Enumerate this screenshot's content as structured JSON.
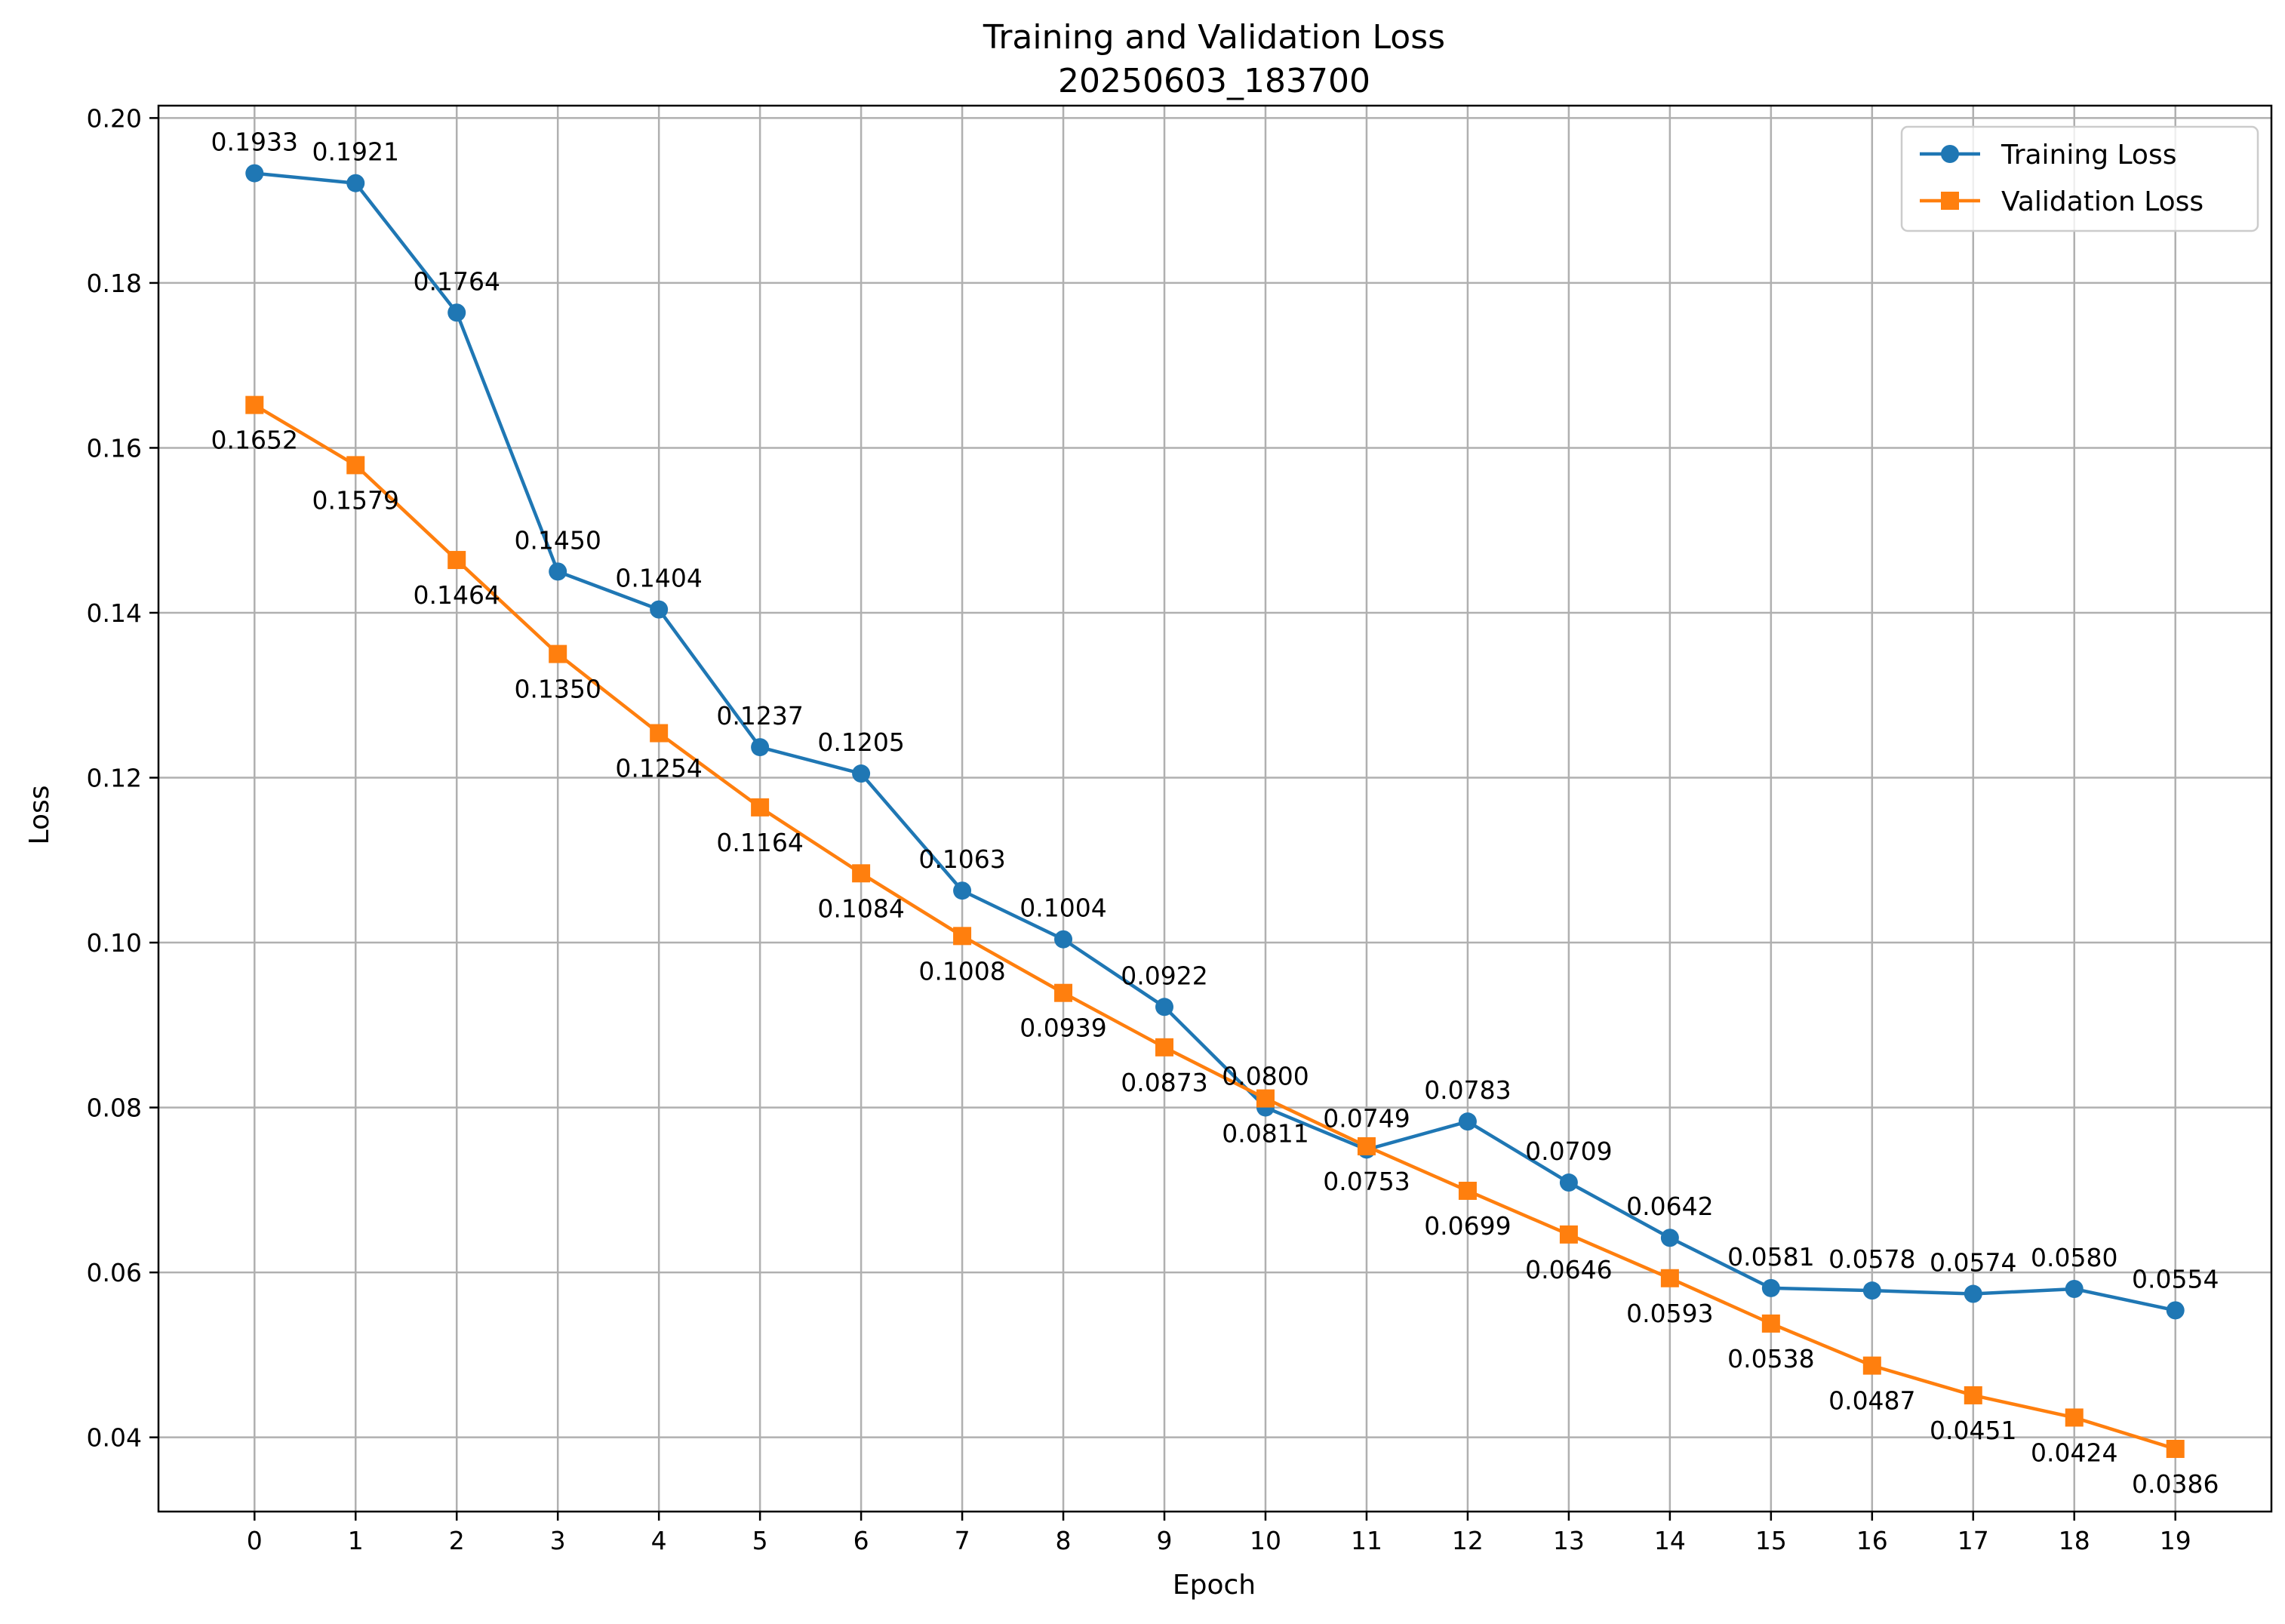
{
  "chart_data": {
    "type": "line",
    "title": "Training and Validation Loss",
    "subtitle": "20250603_183700",
    "xlabel": "Epoch",
    "ylabel": "Loss",
    "x": [
      0,
      1,
      2,
      3,
      4,
      5,
      6,
      7,
      8,
      9,
      10,
      11,
      12,
      13,
      14,
      15,
      16,
      17,
      18,
      19
    ],
    "xlim": [
      -0.95,
      19.95
    ],
    "ylim": [
      0.031,
      0.2015
    ],
    "yticks": [
      0.04,
      0.06,
      0.08,
      0.1,
      0.12,
      0.14,
      0.16,
      0.18,
      0.2
    ],
    "ytick_labels": [
      "0.04",
      "0.06",
      "0.08",
      "0.10",
      "0.12",
      "0.14",
      "0.16",
      "0.18",
      "0.20"
    ],
    "xtick_labels": [
      "0",
      "1",
      "2",
      "3",
      "4",
      "5",
      "6",
      "7",
      "8",
      "9",
      "10",
      "11",
      "12",
      "13",
      "14",
      "15",
      "16",
      "17",
      "18",
      "19"
    ],
    "grid": true,
    "legend_position": "top-right",
    "series": [
      {
        "name": "Training Loss",
        "color": "#1f77b4",
        "marker": "circle",
        "label_position": "above",
        "values": [
          0.1933,
          0.1921,
          0.1764,
          0.145,
          0.1404,
          0.1237,
          0.1205,
          0.1063,
          0.1004,
          0.0922,
          0.08,
          0.0749,
          0.0783,
          0.0709,
          0.0642,
          0.0581,
          0.0578,
          0.0574,
          0.058,
          0.0554
        ],
        "labels": [
          "0.1933",
          "0.1921",
          "0.1764",
          "0.1450",
          "0.1404",
          "0.1237",
          "0.1205",
          "0.1063",
          "0.1004",
          "0.0922",
          "0.0800",
          "0.0749",
          "0.0783",
          "0.0709",
          "0.0642",
          "0.0581",
          "0.0578",
          "0.0574",
          "0.0580",
          "0.0554"
        ]
      },
      {
        "name": "Validation Loss",
        "color": "#ff7f0e",
        "marker": "square",
        "label_position": "below",
        "values": [
          0.1652,
          0.1579,
          0.1464,
          0.135,
          0.1254,
          0.1164,
          0.1084,
          0.1008,
          0.0939,
          0.0873,
          0.0811,
          0.0753,
          0.0699,
          0.0646,
          0.0593,
          0.0538,
          0.0487,
          0.0451,
          0.0424,
          0.0386
        ],
        "labels": [
          "0.1652",
          "0.1579",
          "0.1464",
          "0.1350",
          "0.1254",
          "0.1164",
          "0.1084",
          "0.1008",
          "0.0939",
          "0.0873",
          "0.0811",
          "0.0753",
          "0.0699",
          "0.0646",
          "0.0593",
          "0.0538",
          "0.0487",
          "0.0451",
          "0.0424",
          "0.0386"
        ]
      }
    ]
  }
}
